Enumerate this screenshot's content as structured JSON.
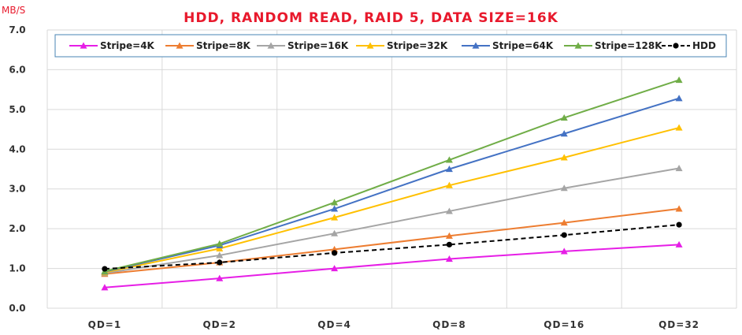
{
  "chart_data": {
    "type": "line",
    "title": "HDD, RANDOM READ, RAID 5, DATA SIZE=16K",
    "ylabel": "MB/S",
    "xlabel": "",
    "categories": [
      "QD=1",
      "QD=2",
      "QD=4",
      "QD=8",
      "QD=16",
      "QD=32"
    ],
    "ylim": [
      0,
      7
    ],
    "ystep": 1,
    "ytick_format": "0.0",
    "grid": true,
    "legend_position": "top",
    "series": [
      {
        "name": "Stripe=4K",
        "color": "#e61ee6",
        "marker": "triangle",
        "dashed": false,
        "values": [
          0.52,
          0.75,
          1.0,
          1.24,
          1.43,
          1.6
        ]
      },
      {
        "name": "Stripe=8K",
        "color": "#ed7d31",
        "marker": "triangle",
        "dashed": false,
        "values": [
          0.86,
          1.15,
          1.48,
          1.82,
          2.15,
          2.5
        ]
      },
      {
        "name": "Stripe=16K",
        "color": "#a5a5a5",
        "marker": "triangle",
        "dashed": false,
        "values": [
          0.88,
          1.33,
          1.88,
          2.44,
          3.02,
          3.52
        ]
      },
      {
        "name": "Stripe=32K",
        "color": "#ffc000",
        "marker": "triangle",
        "dashed": false,
        "values": [
          0.9,
          1.5,
          2.28,
          3.09,
          3.79,
          4.54
        ]
      },
      {
        "name": "Stripe=64K",
        "color": "#4472c4",
        "marker": "triangle",
        "dashed": false,
        "values": [
          0.92,
          1.58,
          2.5,
          3.5,
          4.39,
          5.28
        ]
      },
      {
        "name": "Stripe=128K",
        "color": "#70ad47",
        "marker": "triangle",
        "dashed": false,
        "values": [
          0.93,
          1.62,
          2.66,
          3.73,
          4.79,
          5.74
        ]
      },
      {
        "name": "HDD",
        "color": "#000000",
        "marker": "circle",
        "dashed": true,
        "values": [
          0.99,
          1.15,
          1.39,
          1.6,
          1.84,
          2.1
        ]
      }
    ]
  }
}
